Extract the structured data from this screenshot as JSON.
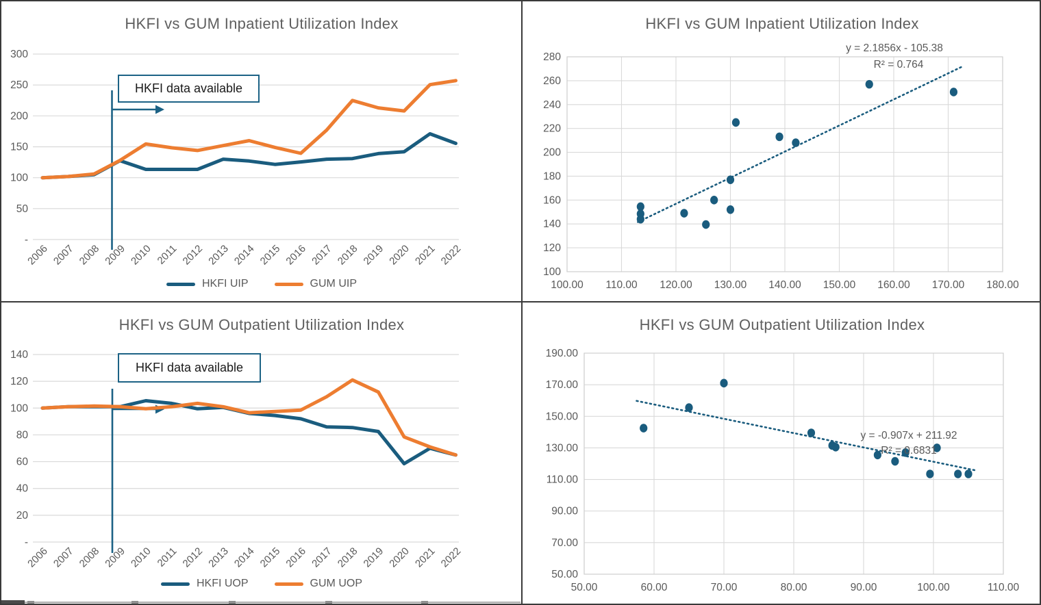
{
  "colors": {
    "accent_blue": "#1C6285",
    "series_blue": "#1A5C7E",
    "series_orange": "#ED7D31",
    "grid": "#D9D9D9",
    "plot_border": "#CFCFCF",
    "axis_text": "#595959",
    "title_text": "#5F5F5F",
    "panel_border": "#3A3A3A"
  },
  "chart_data": [
    {
      "id": "inpatient-line",
      "type": "line",
      "title": "HKFI vs GUM Inpatient Utilization Index",
      "x_categories": [
        "2006",
        "2007",
        "2008",
        "2009",
        "2010",
        "2011",
        "2012",
        "2013",
        "2014",
        "2015",
        "2016",
        "2017",
        "2018",
        "2019",
        "2020",
        "2021",
        "2022"
      ],
      "ylim": [
        0,
        300
      ],
      "y_ticks": [
        {
          "v": 300,
          "label": "300"
        },
        {
          "v": 250,
          "label": "250"
        },
        {
          "v": 200,
          "label": "200"
        },
        {
          "v": 150,
          "label": "150"
        },
        {
          "v": 100,
          "label": "100"
        },
        {
          "v": 50,
          "label": "50"
        },
        {
          "v": 0,
          "label": "-"
        }
      ],
      "grid": "horizontal",
      "legend_position": "bottom",
      "annotation": {
        "label": "HKFI data available"
      },
      "series": [
        {
          "name": "HKFI UIP",
          "color": "#1A5C7E",
          "values": [
            100,
            102,
            105,
            127.5,
            113.5,
            113.5,
            113.5,
            130,
            127,
            121.5,
            125.5,
            130,
            131,
            139,
            142,
            171,
            155.5
          ]
        },
        {
          "name": "GUM UIP",
          "color": "#ED7D31",
          "values": [
            100,
            102,
            106,
            128,
            154.5,
            148.5,
            144,
            152,
            160,
            149,
            139.5,
            177,
            225,
            213,
            208,
            250.5,
            257
          ]
        }
      ]
    },
    {
      "id": "inpatient-scatter",
      "type": "scatter",
      "title": "HKFI vs GUM Inpatient Utilization Index",
      "xlim": [
        100,
        180
      ],
      "ylim": [
        100,
        280
      ],
      "x_ticks": [
        {
          "v": 100,
          "label": "100.00"
        },
        {
          "v": 110,
          "label": "110.00"
        },
        {
          "v": 120,
          "label": "120.00"
        },
        {
          "v": 130,
          "label": "130.00"
        },
        {
          "v": 140,
          "label": "140.00"
        },
        {
          "v": 150,
          "label": "150.00"
        },
        {
          "v": 160,
          "label": "160.00"
        },
        {
          "v": 170,
          "label": "170.00"
        },
        {
          "v": 180,
          "label": "180.00"
        }
      ],
      "y_ticks": [
        {
          "v": 280,
          "label": "280"
        },
        {
          "v": 260,
          "label": "260"
        },
        {
          "v": 240,
          "label": "240"
        },
        {
          "v": 220,
          "label": "220"
        },
        {
          "v": 200,
          "label": "200"
        },
        {
          "v": 180,
          "label": "180"
        },
        {
          "v": 160,
          "label": "160"
        },
        {
          "v": 140,
          "label": "140"
        },
        {
          "v": 120,
          "label": "120"
        },
        {
          "v": 100,
          "label": "100"
        }
      ],
      "grid": "both",
      "points": [
        [
          113.5,
          154.5
        ],
        [
          113.5,
          148.5
        ],
        [
          113.5,
          144
        ],
        [
          121.5,
          149
        ],
        [
          125.5,
          139.5
        ],
        [
          127,
          160
        ],
        [
          130,
          152
        ],
        [
          130,
          177
        ],
        [
          131,
          225
        ],
        [
          139,
          213
        ],
        [
          142,
          208
        ],
        [
          155.5,
          257
        ],
        [
          171,
          250.5
        ]
      ],
      "trendline": {
        "equation": "y = 2.1856x - 105.38",
        "r_squared": "R² = 0.764",
        "slope": 2.1856,
        "intercept": -105.38,
        "x_range": [
          113,
          172.5
        ]
      }
    },
    {
      "id": "outpatient-line",
      "type": "line",
      "title": "HKFI vs GUM Outpatient Utilization Index",
      "x_categories": [
        "2006",
        "2007",
        "2008",
        "2009",
        "2010",
        "2011",
        "2012",
        "2013",
        "2014",
        "2015",
        "2016",
        "2017",
        "2018",
        "2019",
        "2020",
        "2021",
        "2022"
      ],
      "ylim": [
        0,
        140
      ],
      "y_ticks": [
        {
          "v": 140,
          "label": "140"
        },
        {
          "v": 120,
          "label": "120"
        },
        {
          "v": 100,
          "label": "100"
        },
        {
          "v": 80,
          "label": "80"
        },
        {
          "v": 60,
          "label": "60"
        },
        {
          "v": 40,
          "label": "40"
        },
        {
          "v": 20,
          "label": "20"
        },
        {
          "v": 0,
          "label": "-"
        }
      ],
      "grid": "horizontal",
      "legend_position": "bottom",
      "annotation": {
        "label": "HKFI data available"
      },
      "series": [
        {
          "name": "HKFI UOP",
          "color": "#1A5C7E",
          "values": [
            100,
            101,
            101,
            101,
            105.5,
            103.5,
            99.5,
            100.5,
            96,
            94.5,
            92,
            86,
            85.5,
            82.5,
            58.5,
            70,
            65
          ]
        },
        {
          "name": "GUM UOP",
          "color": "#ED7D31",
          "values": [
            100,
            101,
            101.5,
            101,
            99.5,
            101,
            103.5,
            101,
            96.5,
            97.5,
            98.5,
            108.5,
            121,
            112,
            78.5,
            71,
            65
          ]
        }
      ]
    },
    {
      "id": "outpatient-scatter",
      "type": "scatter",
      "title": "HKFI vs GUM Outpatient Utilization Index",
      "xlim": [
        50,
        110
      ],
      "ylim": [
        50,
        190
      ],
      "x_ticks": [
        {
          "v": 50,
          "label": "50.00"
        },
        {
          "v": 60,
          "label": "60.00"
        },
        {
          "v": 70,
          "label": "70.00"
        },
        {
          "v": 80,
          "label": "80.00"
        },
        {
          "v": 90,
          "label": "90.00"
        },
        {
          "v": 100,
          "label": "100.00"
        },
        {
          "v": 110,
          "label": "110.00"
        }
      ],
      "y_ticks": [
        {
          "v": 190,
          "label": "190.00"
        },
        {
          "v": 170,
          "label": "170.00"
        },
        {
          "v": 150,
          "label": "150.00"
        },
        {
          "v": 130,
          "label": "130.00"
        },
        {
          "v": 110,
          "label": "110.00"
        },
        {
          "v": 90,
          "label": "90.00"
        },
        {
          "v": 70,
          "label": "70.00"
        },
        {
          "v": 50,
          "label": "50.00"
        }
      ],
      "grid": "both",
      "points": [
        [
          105,
          113.5
        ],
        [
          103.5,
          113.5
        ],
        [
          99.5,
          113.5
        ],
        [
          100.5,
          130
        ],
        [
          96,
          127
        ],
        [
          94.5,
          121.5
        ],
        [
          92,
          125.5
        ],
        [
          86,
          130.5
        ],
        [
          85.5,
          131.5
        ],
        [
          82.5,
          139.5
        ],
        [
          58.5,
          142.5
        ],
        [
          70,
          171
        ],
        [
          65,
          155.5
        ]
      ],
      "trendline": {
        "equation": "y = -0.907x + 211.92",
        "r_squared": "R² = 0.6831",
        "slope": -0.907,
        "intercept": 211.92,
        "x_range": [
          57.5,
          106
        ]
      }
    }
  ]
}
